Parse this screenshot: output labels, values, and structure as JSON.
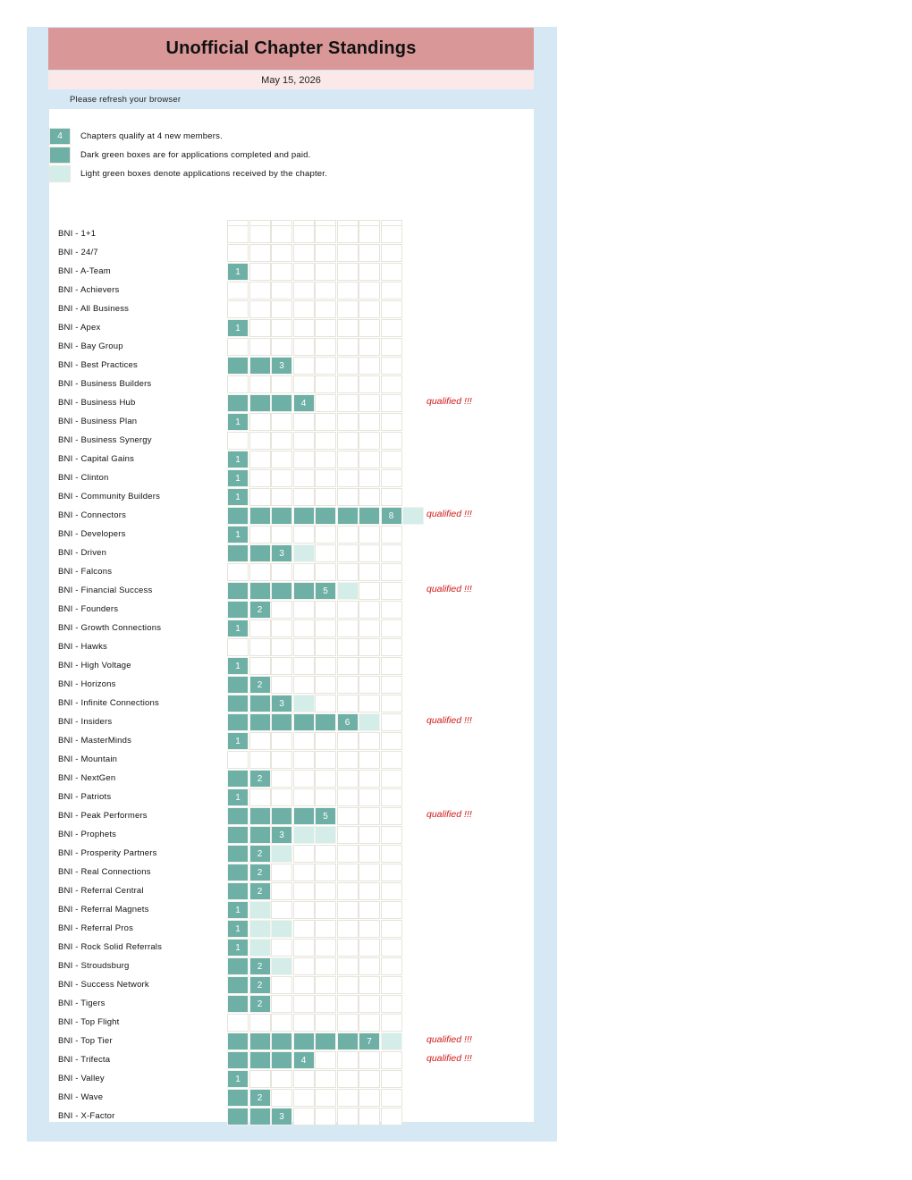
{
  "title": "Unofficial Chapter Standings",
  "date": "May 15, 2026",
  "notice": "Please refresh your browser",
  "legend": [
    {
      "box_text": "4",
      "kind": "dark",
      "text": "Chapters qualify at 4 new members."
    },
    {
      "box_text": "",
      "kind": "dark",
      "text": "Dark green boxes are for applications completed and paid."
    },
    {
      "box_text": "",
      "kind": "light",
      "text": "Light green boxes denote applications received by the chapter."
    }
  ],
  "qualified_label": "qualified !!!",
  "colors": {
    "frame": "#d6e8f4",
    "header": "#d99797",
    "dateband": "#fbe9e9",
    "dark": "#6fb0a6",
    "light": "#d4ede8",
    "qualified": "#d01818"
  },
  "chapters": [
    {
      "name": "BNI - 1+1",
      "completed": 0,
      "received": 0,
      "qualified": false
    },
    {
      "name": "BNI - 24/7",
      "completed": 0,
      "received": 0,
      "qualified": false
    },
    {
      "name": "BNI - A-Team",
      "completed": 1,
      "received": 0,
      "qualified": false
    },
    {
      "name": "BNI - Achievers",
      "completed": 0,
      "received": 0,
      "qualified": false
    },
    {
      "name": "BNI - All Business",
      "completed": 0,
      "received": 0,
      "qualified": false
    },
    {
      "name": "BNI - Apex",
      "completed": 1,
      "received": 0,
      "qualified": false
    },
    {
      "name": "BNI - Bay Group",
      "completed": 0,
      "received": 0,
      "qualified": false
    },
    {
      "name": "BNI - Best Practices",
      "completed": 3,
      "received": 0,
      "qualified": false
    },
    {
      "name": "BNI - Business Builders",
      "completed": 0,
      "received": 0,
      "qualified": false
    },
    {
      "name": "BNI - Business Hub",
      "completed": 4,
      "received": 0,
      "qualified": true
    },
    {
      "name": "BNI - Business Plan",
      "completed": 1,
      "received": 0,
      "qualified": false
    },
    {
      "name": "BNI - Business Synergy",
      "completed": 0,
      "received": 0,
      "qualified": false
    },
    {
      "name": "BNI - Capital Gains",
      "completed": 1,
      "received": 0,
      "qualified": false
    },
    {
      "name": "BNI - Clinton",
      "completed": 1,
      "received": 0,
      "qualified": false
    },
    {
      "name": "BNI - Community Builders",
      "completed": 1,
      "received": 0,
      "qualified": false
    },
    {
      "name": "BNI - Connectors",
      "completed": 8,
      "received": 1,
      "qualified": true
    },
    {
      "name": "BNI - Developers",
      "completed": 1,
      "received": 0,
      "qualified": false
    },
    {
      "name": "BNI - Driven",
      "completed": 3,
      "received": 1,
      "qualified": false
    },
    {
      "name": "BNI - Falcons",
      "completed": 0,
      "received": 0,
      "qualified": false
    },
    {
      "name": "BNI - Financial Success",
      "completed": 5,
      "received": 1,
      "qualified": true
    },
    {
      "name": "BNI - Founders",
      "completed": 2,
      "received": 0,
      "qualified": false
    },
    {
      "name": "BNI - Growth Connections",
      "completed": 1,
      "received": 0,
      "qualified": false
    },
    {
      "name": "BNI - Hawks",
      "completed": 0,
      "received": 0,
      "qualified": false
    },
    {
      "name": "BNI - High Voltage",
      "completed": 1,
      "received": 0,
      "qualified": false
    },
    {
      "name": "BNI - Horizons",
      "completed": 2,
      "received": 0,
      "qualified": false
    },
    {
      "name": "BNI - Infinite Connections",
      "completed": 3,
      "received": 1,
      "qualified": false
    },
    {
      "name": "BNI - Insiders",
      "completed": 6,
      "received": 1,
      "qualified": true
    },
    {
      "name": "BNI - MasterMinds",
      "completed": 1,
      "received": 0,
      "qualified": false
    },
    {
      "name": "BNI - Mountain",
      "completed": 0,
      "received": 0,
      "qualified": false
    },
    {
      "name": "BNI - NextGen",
      "completed": 2,
      "received": 0,
      "qualified": false
    },
    {
      "name": "BNI - Patriots",
      "completed": 1,
      "received": 0,
      "qualified": false
    },
    {
      "name": "BNI - Peak Performers",
      "completed": 5,
      "received": 0,
      "qualified": true
    },
    {
      "name": "BNI - Prophets",
      "completed": 3,
      "received": 2,
      "qualified": false
    },
    {
      "name": "BNI - Prosperity Partners",
      "completed": 2,
      "received": 1,
      "qualified": false
    },
    {
      "name": "BNI - Real Connections",
      "completed": 2,
      "received": 0,
      "qualified": false
    },
    {
      "name": "BNI - Referral Central",
      "completed": 2,
      "received": 0,
      "qualified": false
    },
    {
      "name": "BNI - Referral Magnets",
      "completed": 1,
      "received": 1,
      "qualified": false
    },
    {
      "name": "BNI - Referral Pros",
      "completed": 1,
      "received": 2,
      "qualified": false
    },
    {
      "name": "BNI - Rock Solid Referrals",
      "completed": 1,
      "received": 1,
      "qualified": false
    },
    {
      "name": "BNI - Stroudsburg",
      "completed": 2,
      "received": 1,
      "qualified": false
    },
    {
      "name": "BNI - Success Network",
      "completed": 2,
      "received": 0,
      "qualified": false
    },
    {
      "name": "BNI - Tigers",
      "completed": 2,
      "received": 0,
      "qualified": false
    },
    {
      "name": "BNI - Top Flight",
      "completed": 0,
      "received": 0,
      "qualified": false
    },
    {
      "name": "BNI - Top Tier",
      "completed": 7,
      "received": 1,
      "qualified": true
    },
    {
      "name": "BNI - Trifecta",
      "completed": 4,
      "received": 0,
      "qualified": true
    },
    {
      "name": "BNI - Valley",
      "completed": 1,
      "received": 0,
      "qualified": false
    },
    {
      "name": "BNI - Wave",
      "completed": 2,
      "received": 0,
      "qualified": false
    },
    {
      "name": "BNI - X-Factor",
      "completed": 3,
      "received": 0,
      "qualified": false
    }
  ]
}
